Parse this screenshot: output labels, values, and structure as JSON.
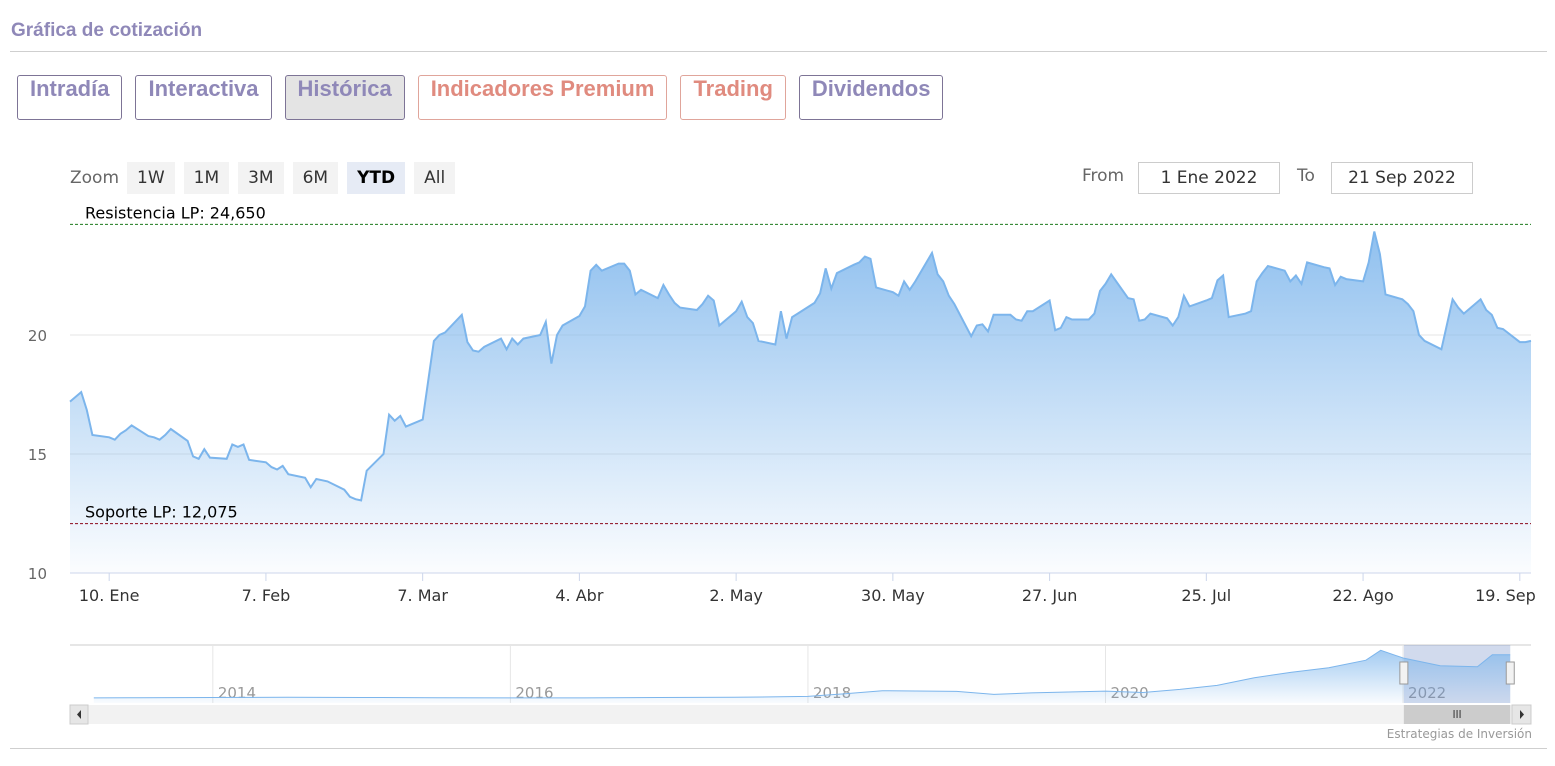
{
  "header": {
    "title": "Gráfica de cotización"
  },
  "tabs": {
    "items": [
      "Intradía",
      "Interactiva",
      "Histórica",
      "Indicadores Premium",
      "Trading",
      "Dividendos"
    ],
    "active": 2
  },
  "zoom": {
    "label": "Zoom",
    "buttons": [
      "1W",
      "1M",
      "3M",
      "6M",
      "YTD",
      "All"
    ],
    "active": 4
  },
  "range": {
    "from_label": "From",
    "from": "1 Ene 2022",
    "to_label": "To",
    "to": "21 Sep 2022"
  },
  "chart_data": {
    "type": "area",
    "x": [
      "2022-01-03",
      "2022-01-04",
      "2022-01-05",
      "2022-01-06",
      "2022-01-07",
      "2022-01-10",
      "2022-01-11",
      "2022-01-12",
      "2022-01-13",
      "2022-01-14",
      "2022-01-17",
      "2022-01-18",
      "2022-01-19",
      "2022-01-20",
      "2022-01-21",
      "2022-01-24",
      "2022-01-25",
      "2022-01-26",
      "2022-01-27",
      "2022-01-28",
      "2022-01-31",
      "2022-02-01",
      "2022-02-02",
      "2022-02-03",
      "2022-02-04",
      "2022-02-07",
      "2022-02-08",
      "2022-02-09",
      "2022-02-10",
      "2022-02-11",
      "2022-02-14",
      "2022-02-15",
      "2022-02-16",
      "2022-02-17",
      "2022-02-18",
      "2022-02-21",
      "2022-02-22",
      "2022-02-23",
      "2022-02-24",
      "2022-02-25",
      "2022-02-28",
      "2022-03-01",
      "2022-03-02",
      "2022-03-03",
      "2022-03-04",
      "2022-03-07",
      "2022-03-08",
      "2022-03-09",
      "2022-03-10",
      "2022-03-11",
      "2022-03-14",
      "2022-03-15",
      "2022-03-16",
      "2022-03-17",
      "2022-03-18",
      "2022-03-21",
      "2022-03-22",
      "2022-03-23",
      "2022-03-24",
      "2022-03-25",
      "2022-03-28",
      "2022-03-29",
      "2022-03-30",
      "2022-03-31",
      "2022-04-01",
      "2022-04-04",
      "2022-04-05",
      "2022-04-06",
      "2022-04-07",
      "2022-04-08",
      "2022-04-11",
      "2022-04-12",
      "2022-04-13",
      "2022-04-14",
      "2022-04-15",
      "2022-04-18",
      "2022-04-19",
      "2022-04-20",
      "2022-04-21",
      "2022-04-22",
      "2022-04-25",
      "2022-04-26",
      "2022-04-27",
      "2022-04-28",
      "2022-04-29",
      "2022-05-02",
      "2022-05-03",
      "2022-05-04",
      "2022-05-05",
      "2022-05-06",
      "2022-05-09",
      "2022-05-10",
      "2022-05-11",
      "2022-05-12",
      "2022-05-13",
      "2022-05-16",
      "2022-05-17",
      "2022-05-18",
      "2022-05-19",
      "2022-05-20",
      "2022-05-23",
      "2022-05-24",
      "2022-05-25",
      "2022-05-26",
      "2022-05-27",
      "2022-05-30",
      "2022-05-31",
      "2022-06-01",
      "2022-06-02",
      "2022-06-03",
      "2022-06-06",
      "2022-06-07",
      "2022-06-08",
      "2022-06-09",
      "2022-06-10",
      "2022-06-13",
      "2022-06-14",
      "2022-06-15",
      "2022-06-16",
      "2022-06-17",
      "2022-06-20",
      "2022-06-21",
      "2022-06-22",
      "2022-06-23",
      "2022-06-24",
      "2022-06-27",
      "2022-06-28",
      "2022-06-29",
      "2022-06-30",
      "2022-07-01",
      "2022-07-04",
      "2022-07-05",
      "2022-07-06",
      "2022-07-07",
      "2022-07-08",
      "2022-07-11",
      "2022-07-12",
      "2022-07-13",
      "2022-07-14",
      "2022-07-15",
      "2022-07-18",
      "2022-07-19",
      "2022-07-20",
      "2022-07-21",
      "2022-07-22",
      "2022-07-25",
      "2022-07-26",
      "2022-07-27",
      "2022-07-28",
      "2022-07-29",
      "2022-08-01",
      "2022-08-02",
      "2022-08-03",
      "2022-08-04",
      "2022-08-05",
      "2022-08-08",
      "2022-08-09",
      "2022-08-10",
      "2022-08-11",
      "2022-08-12",
      "2022-08-15",
      "2022-08-16",
      "2022-08-17",
      "2022-08-18",
      "2022-08-19",
      "2022-08-22",
      "2022-08-23",
      "2022-08-24",
      "2022-08-25",
      "2022-08-26",
      "2022-08-29",
      "2022-08-30",
      "2022-08-31",
      "2022-09-01",
      "2022-09-02",
      "2022-09-05",
      "2022-09-06",
      "2022-09-07",
      "2022-09-08",
      "2022-09-09",
      "2022-09-12",
      "2022-09-13",
      "2022-09-14",
      "2022-09-15",
      "2022-09-16",
      "2022-09-19",
      "2022-09-20",
      "2022-09-21"
    ],
    "series": [
      {
        "color": "#7cb5ec",
        "values": [
          17.2,
          17.4,
          17.6,
          16.85,
          15.8,
          15.7,
          15.6,
          15.85,
          16.0,
          16.2,
          15.75,
          15.7,
          15.6,
          15.8,
          16.05,
          15.55,
          14.9,
          14.8,
          15.2,
          14.85,
          14.8,
          15.4,
          15.3,
          15.4,
          14.75,
          14.65,
          14.45,
          14.35,
          14.5,
          14.15,
          14.0,
          13.6,
          13.95,
          13.9,
          13.85,
          13.5,
          13.2,
          13.1,
          13.05,
          14.3,
          15.0,
          16.65,
          16.4,
          16.6,
          16.15,
          16.45,
          18.1,
          19.75,
          20.0,
          20.1,
          20.85,
          19.7,
          19.35,
          19.3,
          19.5,
          19.85,
          19.4,
          19.85,
          19.6,
          19.85,
          20.0,
          20.55,
          18.8,
          20.0,
          20.4,
          20.8,
          21.2,
          22.7,
          22.95,
          22.7,
          23.0,
          23.0,
          22.7,
          21.7,
          21.9,
          21.55,
          22.1,
          21.7,
          21.35,
          21.15,
          21.05,
          21.3,
          21.65,
          21.45,
          20.4,
          21.0,
          21.4,
          20.75,
          20.5,
          19.75,
          19.6,
          21.0,
          19.85,
          20.75,
          20.9,
          21.35,
          21.75,
          22.8,
          21.95,
          22.6,
          22.95,
          23.05,
          23.3,
          23.2,
          22.0,
          21.8,
          21.65,
          22.25,
          21.9,
          22.25,
          23.45,
          22.55,
          22.25,
          21.65,
          21.3,
          19.95,
          20.4,
          20.45,
          20.15,
          20.85,
          20.85,
          20.65,
          20.6,
          21.0,
          21.0,
          21.45,
          20.2,
          20.3,
          20.75,
          20.65,
          20.65,
          20.9,
          21.85,
          22.15,
          22.55,
          21.55,
          21.5,
          20.6,
          20.65,
          20.9,
          20.7,
          20.4,
          20.75,
          21.65,
          21.2,
          21.45,
          21.55,
          22.3,
          22.5,
          20.75,
          20.9,
          21.0,
          22.25,
          22.6,
          22.9,
          22.7,
          22.25,
          22.5,
          22.15,
          23.05,
          22.85,
          22.8,
          22.1,
          22.45,
          22.35,
          22.25,
          23.05,
          24.35,
          23.4,
          21.7,
          21.5,
          21.3,
          21.0,
          20.0,
          19.75,
          19.4,
          20.45,
          21.5,
          21.15,
          20.9,
          21.5,
          21.05,
          20.85,
          20.3,
          20.25,
          19.7,
          19.7,
          19.75
        ]
      }
    ],
    "xlim": [
      "2022-01-03",
      "2022-09-21"
    ],
    "xticks": [
      {
        "value": "2022-01-10",
        "label": "10. Ene"
      },
      {
        "value": "2022-02-07",
        "label": "7. Feb"
      },
      {
        "value": "2022-03-07",
        "label": "7. Mar"
      },
      {
        "value": "2022-04-04",
        "label": "4. Abr"
      },
      {
        "value": "2022-05-02",
        "label": "2. May"
      },
      {
        "value": "2022-05-30",
        "label": "30. May"
      },
      {
        "value": "2022-06-27",
        "label": "27. Jun"
      },
      {
        "value": "2022-07-25",
        "label": "25. Jul"
      },
      {
        "value": "2022-08-22",
        "label": "22. Ago"
      },
      {
        "value": "2022-09-19",
        "label": "19. Sep"
      }
    ],
    "ylim": [
      10,
      25
    ],
    "yticks": [
      10,
      15,
      20
    ],
    "grid": true,
    "plot_lines": [
      {
        "label": "Resistencia LP: 24,650",
        "value": 24.65,
        "color": "#1e7b1e"
      },
      {
        "label": "Soporte LP: 12,075",
        "value": 12.075,
        "color": "#8b0a1a"
      }
    ]
  },
  "navigator": {
    "x": [
      2013.2,
      2013.5,
      2014.0,
      2014.5,
      2015.0,
      2015.5,
      2016.0,
      2016.5,
      2017.0,
      2017.5,
      2018.0,
      2018.25,
      2018.5,
      2019.0,
      2019.25,
      2019.5,
      2020.0,
      2020.25,
      2020.5,
      2020.75,
      2021.0,
      2021.25,
      2021.5,
      2021.75,
      2021.85,
      2022.0,
      2022.25,
      2022.5,
      2022.6,
      2022.72
    ],
    "values": [
      2.3,
      2.4,
      2.5,
      2.6,
      2.5,
      2.4,
      2.3,
      2.3,
      2.5,
      2.6,
      3.0,
      4.2,
      5.6,
      5.3,
      3.9,
      4.6,
      5.4,
      4.8,
      6.2,
      8.0,
      11.5,
      14.0,
      16.0,
      19.5,
      24.0,
      20.5,
      17.0,
      16.5,
      22.0,
      22.0
    ],
    "xlim": [
      2013.04,
      2022.86
    ],
    "ylim": [
      0,
      26.4
    ],
    "xticks": [
      2014,
      2016,
      2018,
      2020,
      2022
    ]
  },
  "credit": "Estrategias de Inversión"
}
